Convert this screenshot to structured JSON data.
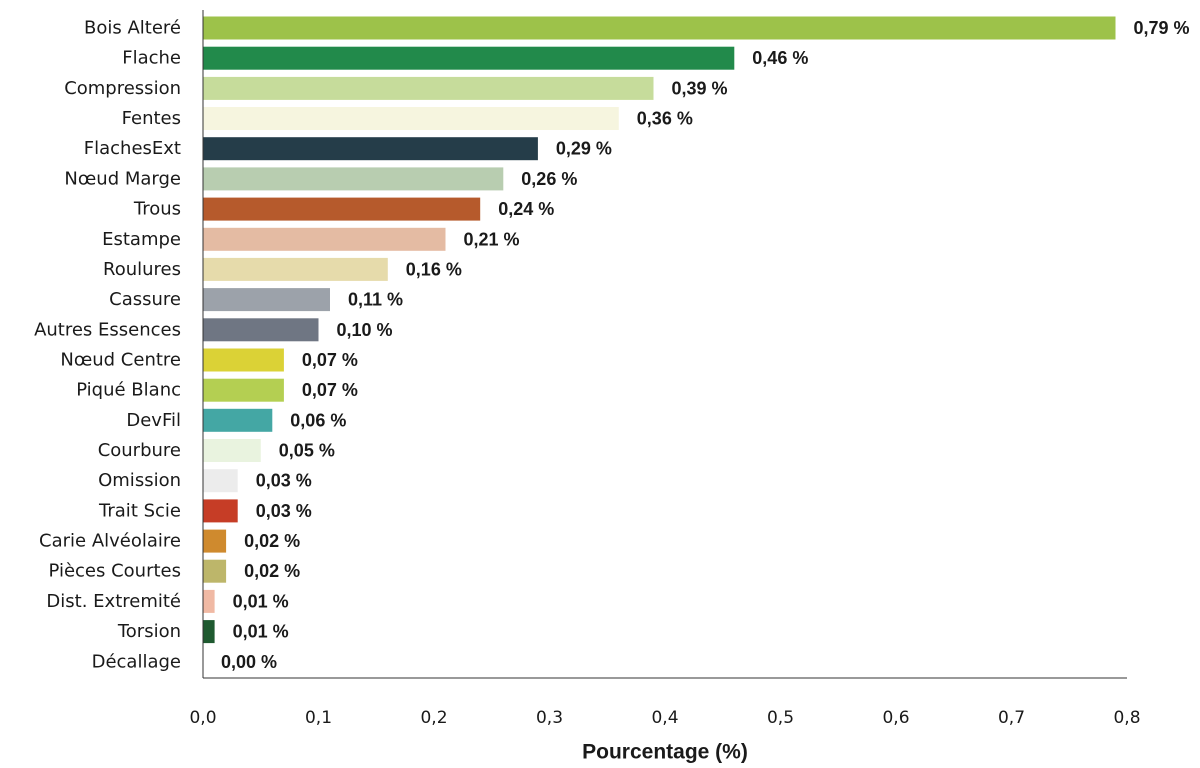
{
  "chart_data": {
    "type": "bar",
    "orientation": "horizontal",
    "xlabel": "Pourcentage (%)",
    "ylabel": "",
    "xlim": [
      0,
      0.8
    ],
    "x_ticks": [
      0,
      0.1,
      0.2,
      0.3,
      0.4,
      0.5,
      0.6,
      0.7,
      0.8
    ],
    "x_tick_labels": [
      "0,0",
      "0,1",
      "0,2",
      "0,3",
      "0,4",
      "0,5",
      "0,6",
      "0,7",
      "0,8"
    ],
    "grid": false,
    "bars": [
      {
        "category": "Bois Alteré",
        "value": 0.79,
        "label": "0,79 %",
        "color": "#9dc24a"
      },
      {
        "category": "Flache",
        "value": 0.46,
        "label": "0,46 %",
        "color": "#228a4b"
      },
      {
        "category": "Compression",
        "value": 0.39,
        "label": "0,39 %",
        "color": "#c6dc9b"
      },
      {
        "category": "Fentes",
        "value": 0.36,
        "label": "0,36 %",
        "color": "#f6f5df"
      },
      {
        "category": "FlachesExt",
        "value": 0.29,
        "label": "0,29 %",
        "color": "#253d49"
      },
      {
        "category": "Nœud Marge",
        "value": 0.26,
        "label": "0,26 %",
        "color": "#b8cdb0"
      },
      {
        "category": "Trous",
        "value": 0.24,
        "label": "0,24 %",
        "color": "#b65a2c"
      },
      {
        "category": "Estampe",
        "value": 0.21,
        "label": "0,21 %",
        "color": "#e4bba3"
      },
      {
        "category": "Roulures",
        "value": 0.16,
        "label": "0,16 %",
        "color": "#e6dbab"
      },
      {
        "category": "Cassure",
        "value": 0.11,
        "label": "0,11 %",
        "color": "#9ca2aa"
      },
      {
        "category": "Autres Essences",
        "value": 0.1,
        "label": "0,10 %",
        "color": "#6f7683"
      },
      {
        "category": "Nœud Centre",
        "value": 0.07,
        "label": "0,07 %",
        "color": "#dbd236"
      },
      {
        "category": "Piqué Blanc",
        "value": 0.07,
        "label": "0,07 %",
        "color": "#b4cf52"
      },
      {
        "category": "DevFil",
        "value": 0.06,
        "label": "0,06 %",
        "color": "#44a7a4"
      },
      {
        "category": "Courbure",
        "value": 0.05,
        "label": "0,05 %",
        "color": "#e9f3df"
      },
      {
        "category": "Omission",
        "value": 0.03,
        "label": "0,03 %",
        "color": "#ececec"
      },
      {
        "category": "Trait Scie",
        "value": 0.03,
        "label": "0,03 %",
        "color": "#c63d26"
      },
      {
        "category": "Carie Alvéolaire",
        "value": 0.02,
        "label": "0,02 %",
        "color": "#cf8a2e"
      },
      {
        "category": "Pièces Courtes",
        "value": 0.02,
        "label": "0,02 %",
        "color": "#bdb66a"
      },
      {
        "category": "Dist. Extremité",
        "value": 0.01,
        "label": "0,01 %",
        "color": "#f0b9a4"
      },
      {
        "category": "Torsion",
        "value": 0.01,
        "label": "0,01 %",
        "color": "#1f5a30"
      },
      {
        "category": "Décallage",
        "value": 0.0,
        "label": "0,00 %",
        "color": "#cccccc"
      }
    ]
  }
}
